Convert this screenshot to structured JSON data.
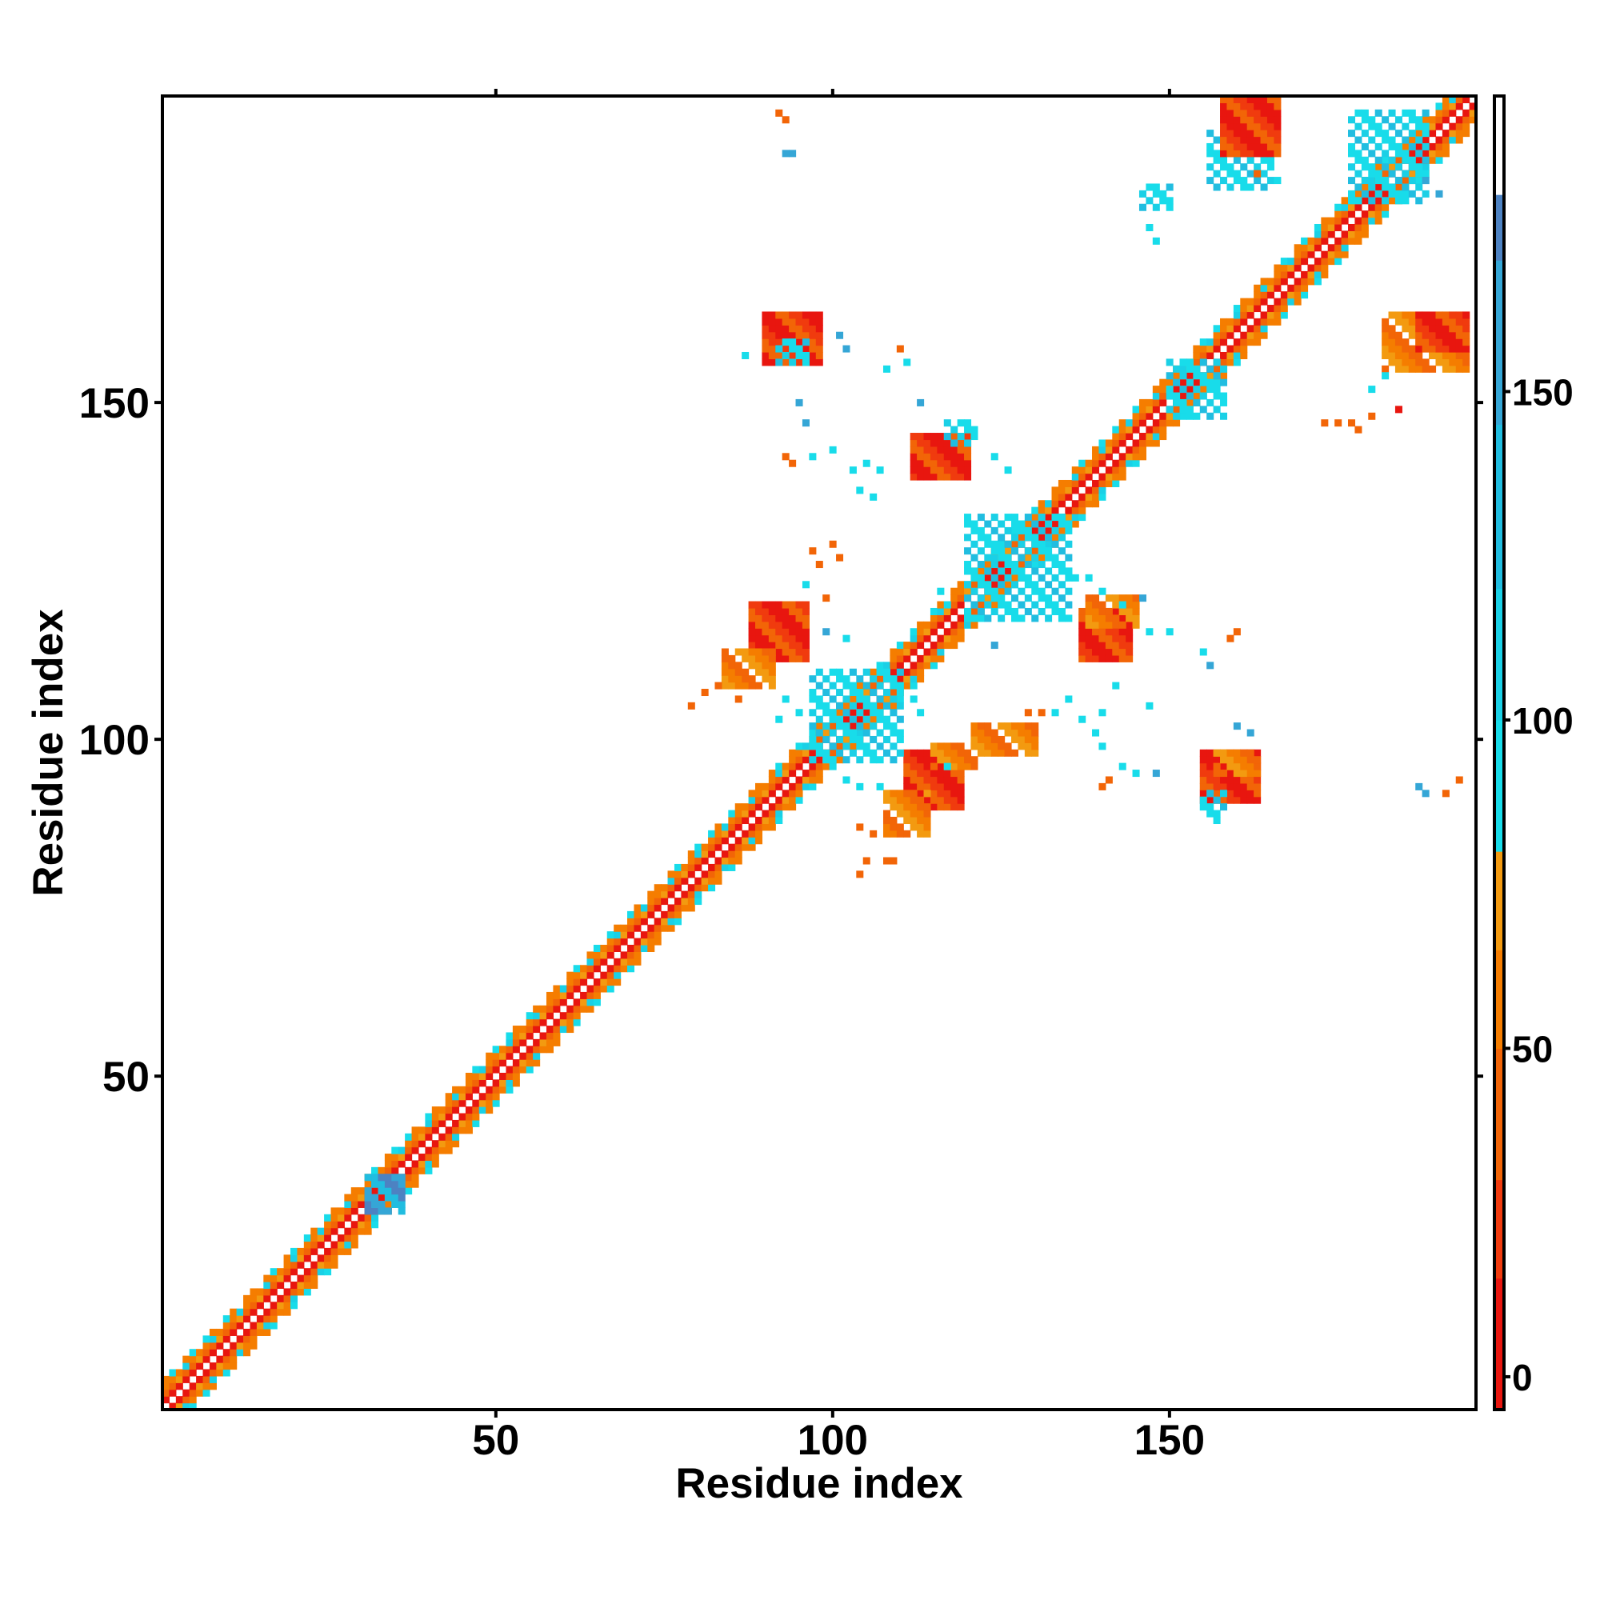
{
  "chart_data": {
    "type": "heatmap",
    "title": "",
    "xlabel": "Residue index",
    "ylabel": "Residue index",
    "xlim": [
      1,
      195
    ],
    "ylim": [
      1,
      195
    ],
    "x_ticks": [
      50,
      100,
      150
    ],
    "y_ticks": [
      50,
      100,
      150
    ],
    "x_tick_labels": [
      "50",
      "100",
      "150"
    ],
    "y_tick_labels": [
      "50",
      "100",
      "150"
    ],
    "grid": false,
    "legend": "colorbar right",
    "colorbar": {
      "range": [
        -5,
        195
      ],
      "ticks": [
        0,
        50,
        100,
        150
      ],
      "tick_labels": [
        "0",
        "50",
        "100",
        "150"
      ],
      "bands": [
        {
          "from": -5,
          "to": 15,
          "color": "#e8160f"
        },
        {
          "from": 15,
          "to": 30,
          "color": "#f03b0e"
        },
        {
          "from": 30,
          "to": 50,
          "color": "#f26507"
        },
        {
          "from": 50,
          "to": 65,
          "color": "#f57d00"
        },
        {
          "from": 65,
          "to": 80,
          "color": "#f39a10"
        },
        {
          "from": 80,
          "to": 100,
          "color": "#18dcea"
        },
        {
          "from": 100,
          "to": 120,
          "color": "#1ad0e6"
        },
        {
          "from": 120,
          "to": 145,
          "color": "#21bde0"
        },
        {
          "from": 145,
          "to": 170,
          "color": "#35a6d6"
        },
        {
          "from": 170,
          "to": 180,
          "color": "#4d82c2"
        },
        {
          "from": 180,
          "to": 195,
          "color": "#ffffff"
        }
      ]
    },
    "diagonal": {
      "from": 1,
      "to": 195
    },
    "blocks": [
      {
        "x": [
          146,
          150
        ],
        "y": [
          179,
          182
        ],
        "c": "cyan"
      },
      {
        "x": [
          156,
          165
        ],
        "y": [
          182,
          190
        ],
        "c": "cyan"
      },
      {
        "x": [
          158,
          166
        ],
        "y": [
          187,
          195
        ],
        "c": "red"
      },
      {
        "x": [
          177,
          188
        ],
        "y": [
          180,
          193
        ],
        "c": "cyan"
      },
      {
        "x": [
          182,
          194
        ],
        "y": [
          155,
          163
        ],
        "c": "orange"
      },
      {
        "x": [
          187,
          194
        ],
        "y": [
          158,
          163
        ],
        "c": "red"
      },
      {
        "x": [
          90,
          98
        ],
        "y": [
          156,
          163
        ],
        "c": "red"
      },
      {
        "x": [
          92,
          96
        ],
        "y": [
          156,
          159
        ],
        "c": "cyan"
      },
      {
        "x": [
          112,
          120
        ],
        "y": [
          139,
          145
        ],
        "c": "red"
      },
      {
        "x": [
          117,
          121
        ],
        "y": [
          144,
          147
        ],
        "c": "cyan"
      },
      {
        "x": [
          88,
          96
        ],
        "y": [
          112,
          120
        ],
        "c": "red"
      },
      {
        "x": [
          84,
          91
        ],
        "y": [
          108,
          113
        ],
        "c": "orange"
      },
      {
        "x": [
          137,
          144
        ],
        "y": [
          112,
          119
        ],
        "c": "red"
      },
      {
        "x": [
          138,
          145
        ],
        "y": [
          117,
          121
        ],
        "c": "orange"
      },
      {
        "x": [
          111,
          119
        ],
        "y": [
          90,
          98
        ],
        "c": "red"
      },
      {
        "x": [
          108,
          114
        ],
        "y": [
          86,
          92
        ],
        "c": "orange"
      },
      {
        "x": [
          115,
          121
        ],
        "y": [
          96,
          99
        ],
        "c": "orange"
      },
      {
        "x": [
          121,
          130
        ],
        "y": [
          98,
          102
        ],
        "c": "orange"
      },
      {
        "x": [
          155,
          163
        ],
        "y": [
          91,
          98
        ],
        "c": "red"
      },
      {
        "x": [
          155,
          158
        ],
        "y": [
          89,
          92
        ],
        "c": "cyan"
      },
      {
        "x": [
          157,
          163
        ],
        "y": [
          95,
          98
        ],
        "c": "orange"
      },
      {
        "x": [
          97,
          110
        ],
        "y": [
          97,
          110
        ],
        "c": "cyan"
      },
      {
        "x": [
          120,
          135
        ],
        "y": [
          118,
          133
        ],
        "c": "cyan"
      },
      {
        "x": [
          150,
          158
        ],
        "y": [
          148,
          156
        ],
        "c": "cyan"
      },
      {
        "x": [
          31,
          36
        ],
        "y": [
          30,
          35
        ],
        "c": "steel"
      }
    ],
    "scatter": [
      {
        "x": 92,
        "y": 193,
        "c": "orange"
      },
      {
        "x": 93,
        "y": 192,
        "c": "orange"
      },
      {
        "x": 93,
        "y": 187,
        "c": "steel"
      },
      {
        "x": 94,
        "y": 187,
        "c": "steel"
      },
      {
        "x": 147,
        "y": 176,
        "c": "cyan"
      },
      {
        "x": 148,
        "y": 174,
        "c": "cyan"
      },
      {
        "x": 163,
        "y": 184,
        "c": "orange"
      },
      {
        "x": 166,
        "y": 183,
        "c": "cyan"
      },
      {
        "x": 101,
        "y": 160,
        "c": "steel"
      },
      {
        "x": 102,
        "y": 158,
        "c": "steel"
      },
      {
        "x": 87,
        "y": 157,
        "c": "cyan"
      },
      {
        "x": 110,
        "y": 158,
        "c": "orange"
      },
      {
        "x": 108,
        "y": 155,
        "c": "cyan"
      },
      {
        "x": 111,
        "y": 156,
        "c": "cyan"
      },
      {
        "x": 95,
        "y": 150,
        "c": "steel"
      },
      {
        "x": 96,
        "y": 147,
        "c": "steel"
      },
      {
        "x": 93,
        "y": 142,
        "c": "orange"
      },
      {
        "x": 94,
        "y": 141,
        "c": "orange"
      },
      {
        "x": 97,
        "y": 142,
        "c": "cyan"
      },
      {
        "x": 100,
        "y": 143,
        "c": "cyan"
      },
      {
        "x": 103,
        "y": 140,
        "c": "cyan"
      },
      {
        "x": 105,
        "y": 141,
        "c": "cyan"
      },
      {
        "x": 107,
        "y": 140,
        "c": "cyan"
      },
      {
        "x": 104,
        "y": 137,
        "c": "cyan"
      },
      {
        "x": 106,
        "y": 136,
        "c": "cyan"
      },
      {
        "x": 113,
        "y": 150,
        "c": "steel"
      },
      {
        "x": 124,
        "y": 142,
        "c": "cyan"
      },
      {
        "x": 126,
        "y": 140,
        "c": "cyan"
      },
      {
        "x": 97,
        "y": 128,
        "c": "orange"
      },
      {
        "x": 98,
        "y": 126,
        "c": "orange"
      },
      {
        "x": 100,
        "y": 129,
        "c": "orange"
      },
      {
        "x": 101,
        "y": 127,
        "c": "orange"
      },
      {
        "x": 96,
        "y": 123,
        "c": "cyan"
      },
      {
        "x": 99,
        "y": 121,
        "c": "orange"
      },
      {
        "x": 99,
        "y": 116,
        "c": "steel"
      },
      {
        "x": 102,
        "y": 115,
        "c": "cyan"
      },
      {
        "x": 79,
        "y": 105,
        "c": "orange"
      },
      {
        "x": 81,
        "y": 107,
        "c": "orange"
      },
      {
        "x": 83,
        "y": 108,
        "c": "orange"
      },
      {
        "x": 86,
        "y": 106,
        "c": "orange"
      },
      {
        "x": 93,
        "y": 106,
        "c": "cyan"
      },
      {
        "x": 92,
        "y": 103,
        "c": "cyan"
      },
      {
        "x": 95,
        "y": 104,
        "c": "cyan"
      },
      {
        "x": 112,
        "y": 106,
        "c": "cyan"
      },
      {
        "x": 113,
        "y": 104,
        "c": "cyan"
      },
      {
        "x": 116,
        "y": 122,
        "c": "cyan"
      },
      {
        "x": 117,
        "y": 120,
        "c": "cyan"
      },
      {
        "x": 124,
        "y": 114,
        "c": "steel"
      },
      {
        "x": 146,
        "y": 121,
        "c": "steel"
      },
      {
        "x": 147,
        "y": 116,
        "c": "cyan"
      },
      {
        "x": 150,
        "y": 116,
        "c": "cyan"
      },
      {
        "x": 140,
        "y": 122,
        "c": "cyan"
      },
      {
        "x": 143,
        "y": 120,
        "c": "cyan"
      },
      {
        "x": 135,
        "y": 125,
        "c": "cyan"
      },
      {
        "x": 136,
        "y": 124,
        "c": "cyan"
      },
      {
        "x": 138,
        "y": 124,
        "c": "cyan"
      },
      {
        "x": 129,
        "y": 104,
        "c": "orange"
      },
      {
        "x": 131,
        "y": 104,
        "c": "orange"
      },
      {
        "x": 133,
        "y": 104,
        "c": "cyan"
      },
      {
        "x": 135,
        "y": 106,
        "c": "cyan"
      },
      {
        "x": 137,
        "y": 103,
        "c": "cyan"
      },
      {
        "x": 140,
        "y": 104,
        "c": "cyan"
      },
      {
        "x": 139,
        "y": 101,
        "c": "cyan"
      },
      {
        "x": 140,
        "y": 99,
        "c": "cyan"
      },
      {
        "x": 143,
        "y": 96,
        "c": "cyan"
      },
      {
        "x": 145,
        "y": 95,
        "c": "cyan"
      },
      {
        "x": 148,
        "y": 95,
        "c": "steel"
      },
      {
        "x": 140,
        "y": 93,
        "c": "orange"
      },
      {
        "x": 141,
        "y": 94,
        "c": "orange"
      },
      {
        "x": 147,
        "y": 105,
        "c": "cyan"
      },
      {
        "x": 142,
        "y": 108,
        "c": "cyan"
      },
      {
        "x": 155,
        "y": 113,
        "c": "cyan"
      },
      {
        "x": 156,
        "y": 111,
        "c": "steel"
      },
      {
        "x": 159,
        "y": 115,
        "c": "orange"
      },
      {
        "x": 160,
        "y": 116,
        "c": "orange"
      },
      {
        "x": 157,
        "y": 88,
        "c": "cyan"
      },
      {
        "x": 160,
        "y": 102,
        "c": "steel"
      },
      {
        "x": 162,
        "y": 101,
        "c": "steel"
      },
      {
        "x": 104,
        "y": 87,
        "c": "orange"
      },
      {
        "x": 106,
        "y": 86,
        "c": "orange"
      },
      {
        "x": 105,
        "y": 82,
        "c": "orange"
      },
      {
        "x": 104,
        "y": 80,
        "c": "orange"
      },
      {
        "x": 108,
        "y": 82,
        "c": "orange"
      },
      {
        "x": 109,
        "y": 82,
        "c": "orange"
      },
      {
        "x": 102,
        "y": 94,
        "c": "cyan"
      },
      {
        "x": 104,
        "y": 93,
        "c": "cyan"
      },
      {
        "x": 107,
        "y": 93,
        "c": "cyan"
      },
      {
        "x": 117,
        "y": 96,
        "c": "cyan"
      },
      {
        "x": 187,
        "y": 93,
        "c": "steel"
      },
      {
        "x": 188,
        "y": 92,
        "c": "steel"
      },
      {
        "x": 191,
        "y": 92,
        "c": "orange"
      },
      {
        "x": 193,
        "y": 94,
        "c": "orange"
      },
      {
        "x": 173,
        "y": 147,
        "c": "orange"
      },
      {
        "x": 175,
        "y": 147,
        "c": "orange"
      },
      {
        "x": 177,
        "y": 147,
        "c": "orange"
      },
      {
        "x": 178,
        "y": 146,
        "c": "orange"
      },
      {
        "x": 180,
        "y": 148,
        "c": "orange"
      },
      {
        "x": 180,
        "y": 152,
        "c": "cyan"
      },
      {
        "x": 182,
        "y": 154,
        "c": "cyan"
      },
      {
        "x": 184,
        "y": 149,
        "c": "red"
      },
      {
        "x": 188,
        "y": 183,
        "c": "steel"
      },
      {
        "x": 190,
        "y": 181,
        "c": "steel"
      }
    ]
  }
}
